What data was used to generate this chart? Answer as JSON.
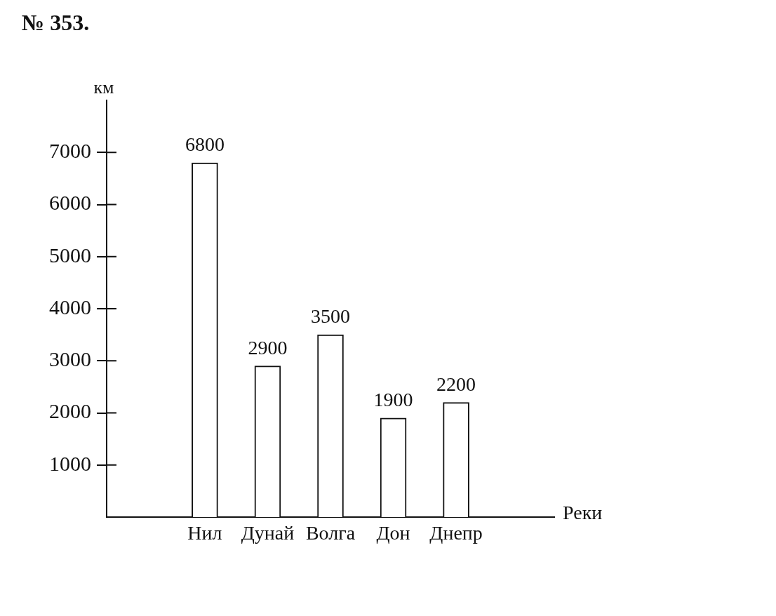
{
  "chart_data": {
    "type": "bar",
    "title": "№ 353.",
    "xlabel": "Реки",
    "ylabel": "км",
    "categories": [
      "Нил",
      "Дунай",
      "Волга",
      "Дон",
      "Днепр"
    ],
    "values": [
      6800,
      2900,
      3500,
      1900,
      2200
    ],
    "color": "#ffffff",
    "ylim": [
      0,
      8000
    ],
    "yticks": [
      1000,
      2000,
      3000,
      4000,
      5000,
      6000,
      7000
    ],
    "data_labels": true
  }
}
